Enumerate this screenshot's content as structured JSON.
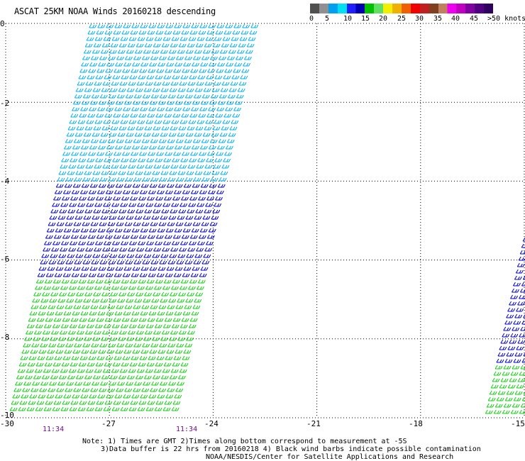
{
  "title": "ASCAT 25KM NOAA Winds 20160218 descending",
  "colorbar": {
    "colors": [
      "#505050",
      "#909090",
      "#00a0f0",
      "#00e0f0",
      "#2020ff",
      "#0000b0",
      "#00c000",
      "#60e060",
      "#f0f000",
      "#f0b000",
      "#f06000",
      "#f00000",
      "#c02020",
      "#804020",
      "#c08060",
      "#f000f0",
      "#c000c0",
      "#8000a0",
      "#500080",
      "#300060",
      "#200040"
    ],
    "labels": [
      "0",
      "5",
      "10",
      "15",
      "20",
      "25",
      "30",
      "35",
      "40",
      "45",
      ">50 knots"
    ]
  },
  "axes": {
    "x_ticks": [
      "-30",
      "-27",
      "-24",
      "-21",
      "-18",
      "-15"
    ],
    "y_ticks": [
      "0",
      "-2",
      "-4",
      "-6",
      "-8",
      "-10"
    ],
    "xlim": [
      -30,
      -15
    ],
    "ylim": [
      -10,
      0
    ]
  },
  "times": [
    "11:34",
    "11:34"
  ],
  "notes": {
    "line1": "Note: 1) Times are GMT 2)Times along bottom correspond to measurement at -5S",
    "line2": "3)Data buffer is 22 hrs from 20160218 4) Black wind barbs indicate possible contamination",
    "line3": "NOAA/NESDIS/Center for Satellite Applications and Research"
  },
  "barb_colors": {
    "light_blue": "#00b0f0",
    "blue": "#0000d0",
    "green": "#10d010"
  },
  "barb_color_bands": [
    {
      "lat_from": 0,
      "lat_to": -4,
      "color": "light_blue"
    },
    {
      "lat_from": -4,
      "lat_to": -6.5,
      "color": "blue"
    },
    {
      "lat_from": -6.5,
      "lat_to": -10,
      "color": "green"
    }
  ]
}
